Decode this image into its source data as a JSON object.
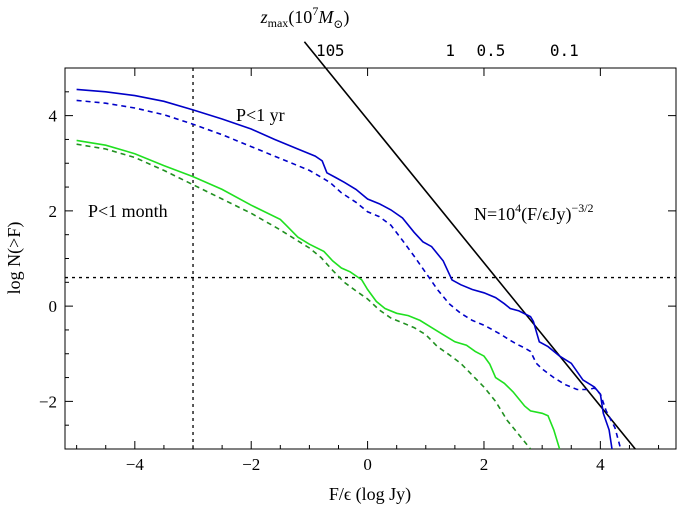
{
  "chart_data": {
    "type": "line",
    "title": "",
    "xlabel": "F/ϵ (log  Jy)",
    "ylabel": "log N(>F)",
    "top_axis": {
      "label_prefix": "z",
      "label_sub": "max",
      "label_mid": "(10",
      "label_sup": "7",
      "label_m": "M",
      "label_msub": "⊙",
      "label_close": ")",
      "ticks": [
        {
          "label": "10",
          "x": -0.72
        },
        {
          "label": "5",
          "x": -0.48
        },
        {
          "label": "1",
          "x": 1.42
        },
        {
          "label": "0.5",
          "x": 2.12
        },
        {
          "label": "0.1",
          "x": 3.38
        }
      ]
    },
    "xlim": [
      -5.2,
      5.3
    ],
    "ylim": [
      -3.0,
      5.0
    ],
    "x_ticks": [
      -4,
      -2,
      0,
      2,
      4
    ],
    "x_tick_labels": [
      "−4",
      "−2",
      "0",
      "2",
      "4"
    ],
    "y_ticks": [
      -2,
      0,
      2,
      4
    ],
    "y_tick_labels": [
      "−2",
      "0",
      "2",
      "4"
    ],
    "grid": false,
    "reference_lines": {
      "vertical_x": -3.0,
      "horizontal_y": 0.6,
      "powerlaw_label": "N=10",
      "powerlaw_sup1": "4",
      "powerlaw_mid": "(F/ϵJy)",
      "powerlaw_sup2": "−3/2",
      "powerlaw_points": [
        [
          -0.72,
          5.0
        ],
        [
          4.6,
          -3.0
        ]
      ]
    },
    "annotations": {
      "p_year": "P<1 yr",
      "p_month": "P<1 month"
    },
    "series": [
      {
        "name": "P<1 yr (solid)",
        "color": "#0000c8",
        "dash": "solid",
        "points": [
          [
            -5.0,
            4.55
          ],
          [
            -4.5,
            4.5
          ],
          [
            -4.0,
            4.42
          ],
          [
            -3.5,
            4.3
          ],
          [
            -3.0,
            4.12
          ],
          [
            -2.5,
            3.93
          ],
          [
            -2.0,
            3.72
          ],
          [
            -1.6,
            3.5
          ],
          [
            -1.2,
            3.3
          ],
          [
            -0.9,
            3.15
          ],
          [
            -0.78,
            3.05
          ],
          [
            -0.7,
            2.8
          ],
          [
            -0.55,
            2.7
          ],
          [
            -0.4,
            2.6
          ],
          [
            -0.2,
            2.45
          ],
          [
            0.0,
            2.25
          ],
          [
            0.2,
            2.15
          ],
          [
            0.4,
            2.02
          ],
          [
            0.6,
            1.85
          ],
          [
            0.8,
            1.55
          ],
          [
            0.95,
            1.35
          ],
          [
            1.1,
            1.25
          ],
          [
            1.3,
            0.95
          ],
          [
            1.45,
            0.55
          ],
          [
            1.6,
            0.45
          ],
          [
            1.8,
            0.35
          ],
          [
            2.0,
            0.28
          ],
          [
            2.2,
            0.18
          ],
          [
            2.35,
            0.05
          ],
          [
            2.45,
            -0.05
          ],
          [
            2.6,
            -0.1
          ],
          [
            2.8,
            -0.22
          ],
          [
            2.85,
            -0.32
          ],
          [
            2.95,
            -0.75
          ],
          [
            3.1,
            -0.85
          ],
          [
            3.3,
            -1.05
          ],
          [
            3.5,
            -1.2
          ],
          [
            3.7,
            -1.55
          ],
          [
            3.9,
            -1.7
          ],
          [
            4.0,
            -1.85
          ],
          [
            4.05,
            -2.25
          ],
          [
            4.15,
            -2.6
          ],
          [
            4.2,
            -3.0
          ]
        ]
      },
      {
        "name": "P<1 yr (dashed)",
        "color": "#0000c8",
        "dash": "dashed",
        "points": [
          [
            -5.0,
            4.32
          ],
          [
            -4.5,
            4.26
          ],
          [
            -4.0,
            4.16
          ],
          [
            -3.5,
            4.02
          ],
          [
            -3.0,
            3.82
          ],
          [
            -2.5,
            3.6
          ],
          [
            -2.0,
            3.35
          ],
          [
            -1.5,
            3.1
          ],
          [
            -1.0,
            2.85
          ],
          [
            -0.65,
            2.6
          ],
          [
            -0.45,
            2.38
          ],
          [
            -0.2,
            2.18
          ],
          [
            0.0,
            1.98
          ],
          [
            0.2,
            1.88
          ],
          [
            0.4,
            1.7
          ],
          [
            0.6,
            1.38
          ],
          [
            0.8,
            1.05
          ],
          [
            1.0,
            0.7
          ],
          [
            1.2,
            0.35
          ],
          [
            1.4,
            0.05
          ],
          [
            1.6,
            -0.15
          ],
          [
            1.8,
            -0.3
          ],
          [
            2.0,
            -0.4
          ],
          [
            2.15,
            -0.5
          ],
          [
            2.3,
            -0.6
          ],
          [
            2.45,
            -0.72
          ],
          [
            2.6,
            -0.82
          ],
          [
            2.7,
            -0.88
          ],
          [
            2.8,
            -0.95
          ],
          [
            2.9,
            -1.2
          ],
          [
            3.0,
            -1.32
          ],
          [
            3.2,
            -1.5
          ],
          [
            3.4,
            -1.65
          ],
          [
            3.6,
            -1.75
          ],
          [
            3.8,
            -1.75
          ],
          [
            3.9,
            -1.72
          ],
          [
            4.0,
            -1.85
          ],
          [
            4.1,
            -2.2
          ],
          [
            4.25,
            -2.55
          ],
          [
            4.35,
            -3.0
          ]
        ]
      },
      {
        "name": "P<1 month (solid)",
        "color": "#20e020",
        "dash": "solid",
        "points": [
          [
            -5.0,
            3.48
          ],
          [
            -4.5,
            3.38
          ],
          [
            -4.0,
            3.2
          ],
          [
            -3.5,
            2.95
          ],
          [
            -3.0,
            2.72
          ],
          [
            -2.5,
            2.45
          ],
          [
            -2.0,
            2.12
          ],
          [
            -1.5,
            1.82
          ],
          [
            -1.4,
            1.7
          ],
          [
            -1.2,
            1.45
          ],
          [
            -1.0,
            1.3
          ],
          [
            -0.75,
            1.15
          ],
          [
            -0.6,
            0.95
          ],
          [
            -0.45,
            0.8
          ],
          [
            -0.3,
            0.72
          ],
          [
            -0.1,
            0.55
          ],
          [
            0.0,
            0.35
          ],
          [
            0.15,
            0.1
          ],
          [
            0.3,
            -0.05
          ],
          [
            0.5,
            -0.15
          ],
          [
            0.7,
            -0.2
          ],
          [
            0.9,
            -0.3
          ],
          [
            1.1,
            -0.45
          ],
          [
            1.3,
            -0.6
          ],
          [
            1.5,
            -0.75
          ],
          [
            1.7,
            -0.82
          ],
          [
            1.85,
            -0.95
          ],
          [
            2.0,
            -1.05
          ],
          [
            2.1,
            -1.22
          ],
          [
            2.2,
            -1.5
          ],
          [
            2.35,
            -1.62
          ],
          [
            2.5,
            -1.8
          ],
          [
            2.6,
            -1.95
          ],
          [
            2.7,
            -2.1
          ],
          [
            2.8,
            -2.2
          ],
          [
            3.0,
            -2.25
          ],
          [
            3.1,
            -2.3
          ],
          [
            3.2,
            -2.6
          ],
          [
            3.3,
            -3.0
          ]
        ]
      },
      {
        "name": "P<1 month (dashed)",
        "color": "#209020",
        "dash": "dashed",
        "points": [
          [
            -5.0,
            3.4
          ],
          [
            -4.5,
            3.3
          ],
          [
            -4.0,
            3.12
          ],
          [
            -3.5,
            2.85
          ],
          [
            -3.0,
            2.55
          ],
          [
            -2.5,
            2.25
          ],
          [
            -2.0,
            1.95
          ],
          [
            -1.5,
            1.6
          ],
          [
            -1.0,
            1.22
          ],
          [
            -0.8,
            1.02
          ],
          [
            -0.6,
            0.75
          ],
          [
            -0.4,
            0.5
          ],
          [
            -0.2,
            0.32
          ],
          [
            0.0,
            0.15
          ],
          [
            0.2,
            -0.08
          ],
          [
            0.4,
            -0.25
          ],
          [
            0.6,
            -0.35
          ],
          [
            0.8,
            -0.45
          ],
          [
            1.0,
            -0.6
          ],
          [
            1.2,
            -0.85
          ],
          [
            1.4,
            -1.02
          ],
          [
            1.6,
            -1.2
          ],
          [
            1.8,
            -1.45
          ],
          [
            2.0,
            -1.7
          ],
          [
            2.2,
            -2.0
          ],
          [
            2.4,
            -2.4
          ],
          [
            2.6,
            -2.7
          ],
          [
            2.8,
            -3.0
          ]
        ]
      }
    ]
  }
}
